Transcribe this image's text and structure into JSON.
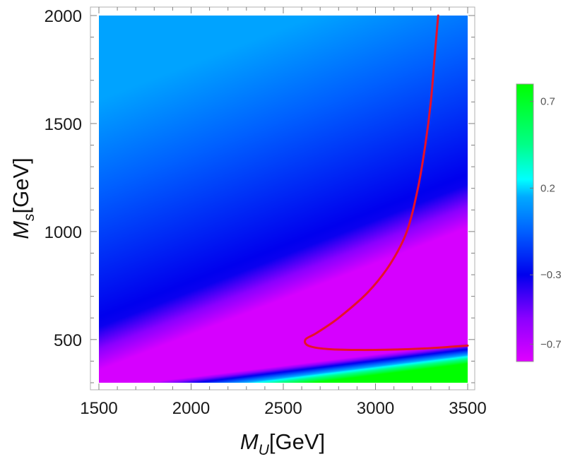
{
  "chart_data": {
    "type": "heatmap",
    "title": "",
    "xlabel": {
      "main": "M",
      "sub": "U",
      "unit": "[GeV]"
    },
    "ylabel": {
      "main": "M",
      "sub": "s",
      "unit": "[GeV]"
    },
    "xlim": [
      1500,
      3500
    ],
    "ylim": [
      300,
      2000
    ],
    "x_ticks": [
      1500,
      2000,
      2500,
      3000,
      3500
    ],
    "x_tick_labels": [
      "1500",
      "2000",
      "2500",
      "3000",
      "3500"
    ],
    "y_ticks": [
      500,
      1000,
      1500,
      2000
    ],
    "y_tick_labels": [
      "500",
      "1000",
      "1500",
      "2000"
    ],
    "colorbar": {
      "range": [
        -0.8,
        0.8
      ],
      "ticks": [
        0.7,
        0.2,
        -0.3,
        -0.7
      ],
      "tick_labels": [
        "0.7",
        "0.2",
        "−0.3",
        "−0.7"
      ],
      "gradient": [
        {
          "value": -0.8,
          "color": "#e000ff"
        },
        {
          "value": -0.55,
          "color": "#8a00ff"
        },
        {
          "value": -0.3,
          "color": "#0000ee"
        },
        {
          "value": -0.05,
          "color": "#0060ff"
        },
        {
          "value": 0.15,
          "color": "#00aaff"
        },
        {
          "value": 0.25,
          "color": "#00ffff"
        },
        {
          "value": 0.45,
          "color": "#00ff88"
        },
        {
          "value": 0.8,
          "color": "#00ff00"
        }
      ]
    },
    "contour": {
      "color": "#e8102a",
      "points": [
        [
          3340,
          2000
        ],
        [
          3320,
          1800
        ],
        [
          3300,
          1600
        ],
        [
          3270,
          1400
        ],
        [
          3230,
          1200
        ],
        [
          3170,
          1000
        ],
        [
          3080,
          850
        ],
        [
          2960,
          720
        ],
        [
          2800,
          600
        ],
        [
          2680,
          530
        ],
        [
          2620,
          500
        ],
        [
          2640,
          470
        ],
        [
          2760,
          455
        ],
        [
          3000,
          452
        ],
        [
          3250,
          458
        ],
        [
          3500,
          472
        ]
      ]
    }
  }
}
